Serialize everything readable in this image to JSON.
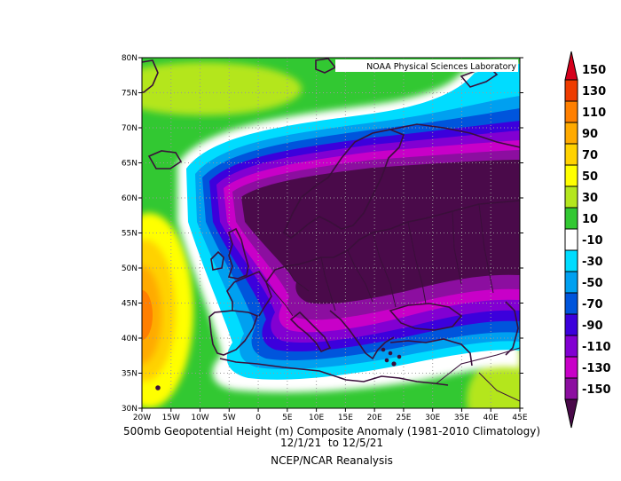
{
  "map": {
    "credit": "NOAA Physical Sciences Laboratory",
    "lat_labels": [
      "80N",
      "75N",
      "70N",
      "65N",
      "60N",
      "55N",
      "50N",
      "45N",
      "40N",
      "35N",
      "30N"
    ],
    "lon_labels": [
      "20W",
      "15W",
      "10W",
      "5W",
      "0",
      "5E",
      "10E",
      "15E",
      "20E",
      "25E",
      "30E",
      "35E",
      "40E",
      "45E"
    ],
    "extent": {
      "lon_min": -20,
      "lon_max": 45,
      "lat_min": 30,
      "lat_max": 80
    },
    "colors": {
      "grid": "#9a9a9a",
      "coast": "#3a0f3a"
    }
  },
  "colorbar": {
    "labels": [
      "150",
      "130",
      "110",
      "90",
      "70",
      "50",
      "30",
      "10",
      "-10",
      "-30",
      "-50",
      "-70",
      "-90",
      "-110",
      "-130",
      "-150"
    ],
    "colors": [
      "#d5001c",
      "#ee3c00",
      "#ff7f00",
      "#ffaa00",
      "#ffd200",
      "#ffff00",
      "#b4e61e",
      "#32c832",
      "#ffffff",
      "#00dcff",
      "#00a0f0",
      "#0055dc",
      "#3c00dc",
      "#8200d2",
      "#c800c8",
      "#8c0ea0",
      "#4a0a4a"
    ]
  },
  "captions": {
    "line1": "500mb Geopotential Height (m) Composite Anomaly (1981-2010 Climatology)",
    "line2": "12/1/21  to 12/5/21",
    "line3": "NCEP/NCAR Reanalysis"
  }
}
